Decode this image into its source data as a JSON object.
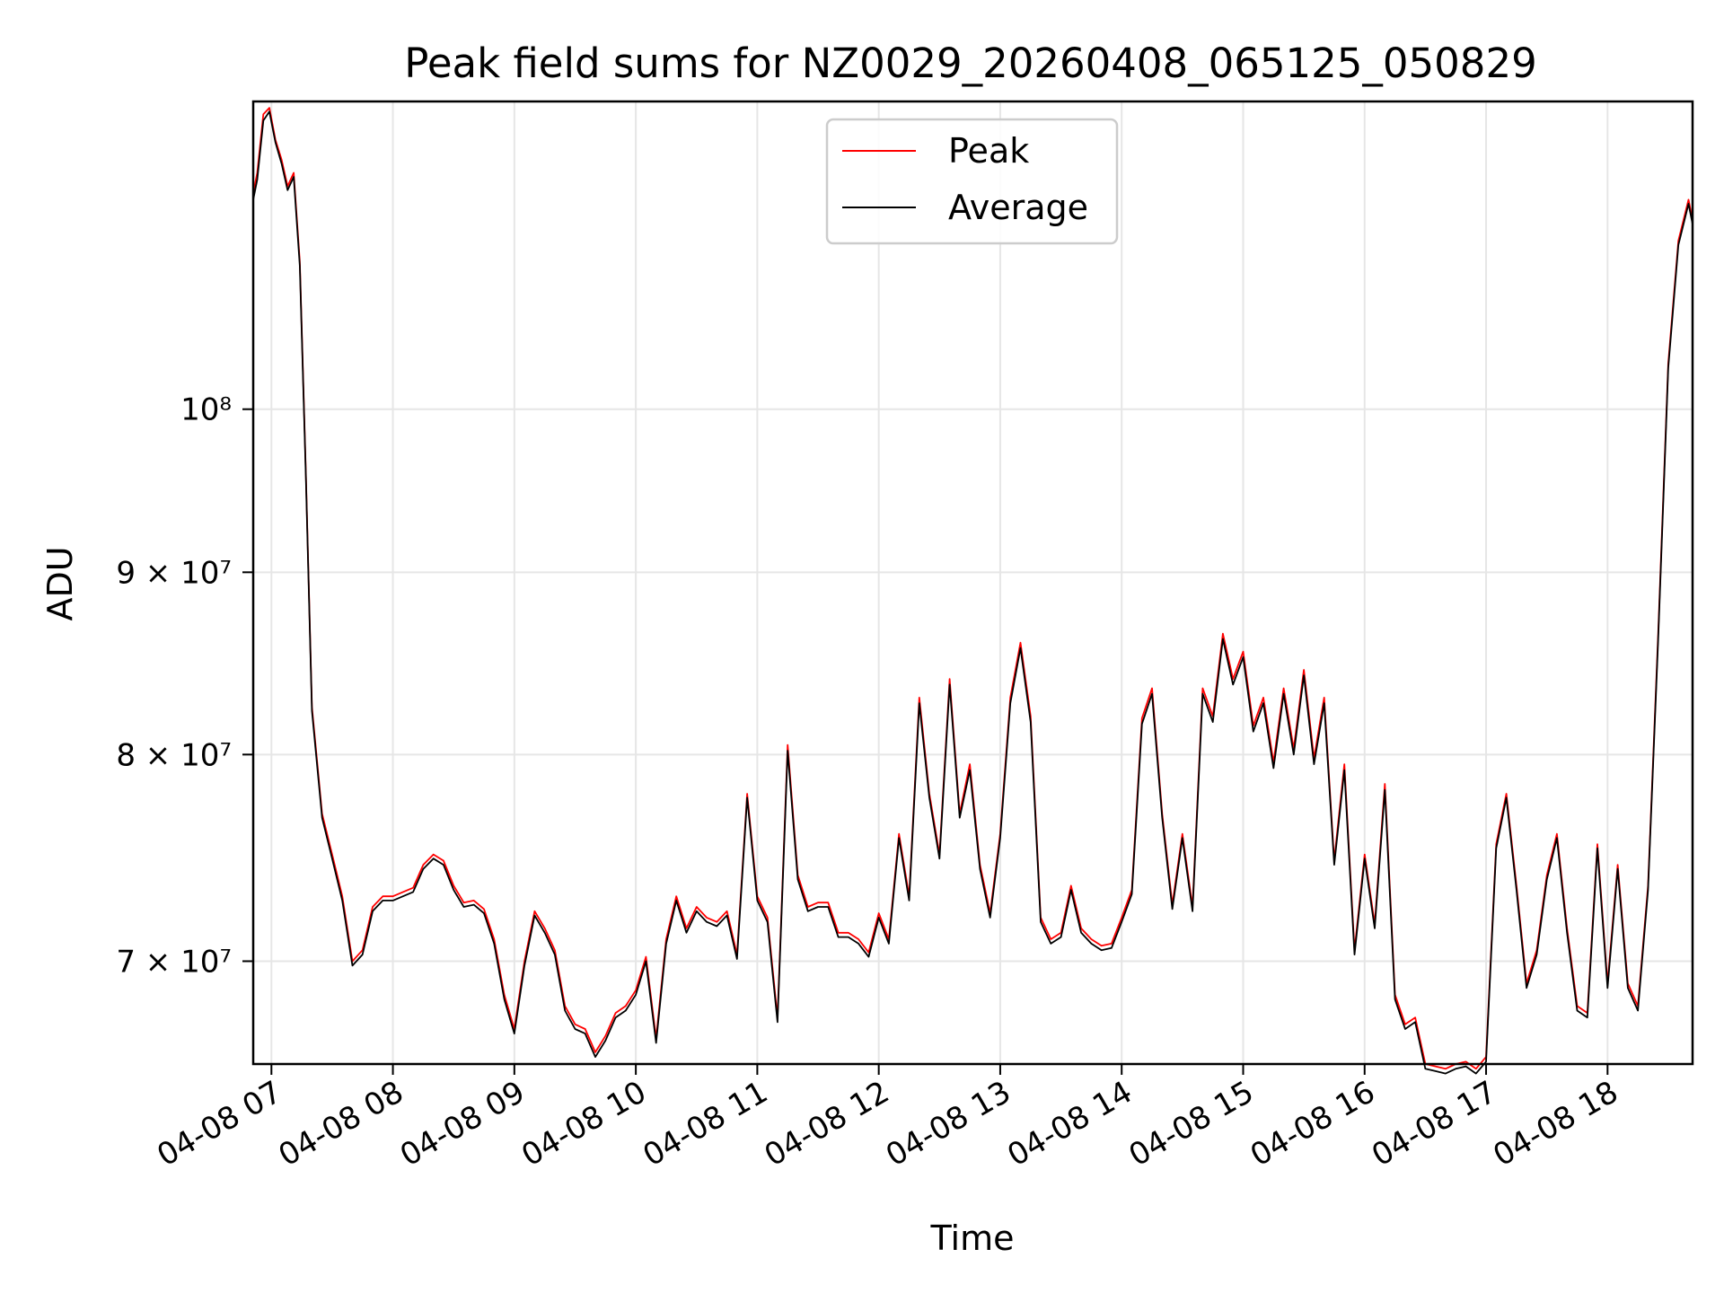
{
  "chart_data": {
    "type": "line",
    "title": "Peak field sums for NZ0029_20260408_065125_050829",
    "xlabel": "Time",
    "ylabel": "ADU",
    "yscale": "log",
    "grid": true,
    "legend_position": "top-center",
    "xlim": [
      "04-08 06:51",
      "04-08 18:42"
    ],
    "ylim": [
      65500000,
      122000000
    ],
    "x_ticks": [
      "04-08 07",
      "04-08 08",
      "04-08 09",
      "04-08 10",
      "04-08 11",
      "04-08 12",
      "04-08 13",
      "04-08 14",
      "04-08 15",
      "04-08 16",
      "04-08 17",
      "04-08 18"
    ],
    "y_ticks": [
      {
        "value": 70000000,
        "label": "7 × 10⁷"
      },
      {
        "value": 80000000,
        "label": "8 × 10⁷"
      },
      {
        "value": 90000000,
        "label": "9 × 10⁷"
      },
      {
        "value": 100000000,
        "label": "10⁸"
      }
    ],
    "x": [
      "06:51",
      "06:53",
      "06:56",
      "06:59",
      "07:02",
      "07:05",
      "07:08",
      "07:11",
      "07:14",
      "07:17",
      "07:20",
      "07:25",
      "07:30",
      "07:35",
      "07:40",
      "07:45",
      "07:50",
      "07:55",
      "08:00",
      "08:05",
      "08:10",
      "08:15",
      "08:20",
      "08:25",
      "08:30",
      "08:35",
      "08:40",
      "08:45",
      "08:50",
      "08:55",
      "09:00",
      "09:05",
      "09:10",
      "09:15",
      "09:20",
      "09:25",
      "09:30",
      "09:35",
      "09:40",
      "09:45",
      "09:50",
      "09:55",
      "10:00",
      "10:05",
      "10:10",
      "10:15",
      "10:20",
      "10:25",
      "10:30",
      "10:35",
      "10:40",
      "10:45",
      "10:50",
      "10:55",
      "11:00",
      "11:05",
      "11:10",
      "11:15",
      "11:20",
      "11:25",
      "11:30",
      "11:35",
      "11:40",
      "11:45",
      "11:50",
      "11:55",
      "12:00",
      "12:05",
      "12:10",
      "12:15",
      "12:20",
      "12:25",
      "12:30",
      "12:35",
      "12:40",
      "12:45",
      "12:50",
      "12:55",
      "13:00",
      "13:05",
      "13:10",
      "13:15",
      "13:20",
      "13:25",
      "13:30",
      "13:35",
      "13:40",
      "13:45",
      "13:50",
      "13:55",
      "14:00",
      "14:05",
      "14:10",
      "14:15",
      "14:20",
      "14:25",
      "14:30",
      "14:35",
      "14:40",
      "14:45",
      "14:50",
      "14:55",
      "15:00",
      "15:05",
      "15:10",
      "15:15",
      "15:20",
      "15:25",
      "15:30",
      "15:35",
      "15:40",
      "15:45",
      "15:50",
      "15:55",
      "16:00",
      "16:05",
      "16:10",
      "16:15",
      "16:20",
      "16:25",
      "16:30",
      "16:35",
      "16:40",
      "16:45",
      "16:50",
      "16:55",
      "17:00",
      "17:05",
      "17:10",
      "17:15",
      "17:20",
      "17:25",
      "17:30",
      "17:35",
      "17:40",
      "17:45",
      "17:50",
      "17:55",
      "18:00",
      "18:05",
      "18:10",
      "18:15",
      "18:20",
      "18:25",
      "18:30",
      "18:35",
      "18:40",
      "18:42"
    ],
    "series": [
      {
        "name": "Peak",
        "color": "#ff0000",
        "values": [
          115000000,
          116500000,
          121000000,
          121500000,
          119000000,
          117500000,
          115500000,
          116500000,
          110000000,
          96000000,
          82500000,
          77000000,
          75000000,
          73000000,
          70000000,
          70500000,
          72500000,
          73000000,
          73000000,
          73200000,
          73400000,
          74500000,
          75000000,
          74700000,
          73500000,
          72700000,
          72800000,
          72400000,
          71000000,
          68500000,
          67000000,
          70000000,
          72300000,
          71500000,
          70500000,
          68000000,
          67200000,
          67000000,
          66000000,
          66700000,
          67700000,
          68000000,
          68700000,
          70200000,
          66600000,
          71000000,
          73000000,
          71500000,
          72500000,
          72000000,
          71800000,
          72300000,
          70300000,
          78000000,
          73000000,
          72000000,
          67500000,
          80500000,
          74000000,
          72500000,
          72700000,
          72700000,
          71300000,
          71300000,
          71000000,
          70400000,
          72200000,
          71000000,
          76000000,
          73000000,
          83000000,
          78000000,
          75000000,
          84000000,
          77000000,
          79500000,
          74500000,
          72200000,
          76000000,
          83000000,
          86000000,
          82000000,
          72000000,
          71000000,
          71300000,
          73500000,
          71500000,
          71000000,
          70700000,
          70800000,
          72000000,
          73300000,
          81900000,
          83500000,
          77000000,
          72600000,
          76000000,
          72500000,
          83500000,
          82000000,
          86500000,
          84000000,
          85500000,
          81500000,
          83000000,
          79600000,
          83500000,
          80300000,
          84500000,
          79800000,
          83000000,
          74700000,
          79500000,
          70500000,
          75000000,
          71700000,
          78500000,
          68500000,
          67200000,
          67500000,
          65500000,
          65400000,
          65300000,
          65500000,
          65600000,
          65300000,
          65800000,
          75500000,
          78000000,
          73500000,
          69000000,
          70500000,
          74000000,
          76000000,
          71500000,
          68000000,
          67700000,
          75500000,
          69000000,
          74500000,
          69000000,
          68000000,
          73500000,
          86500000,
          103000000,
          111500000,
          114500000,
          113000000
        ]
      },
      {
        "name": "Average",
        "color": "#000000",
        "values": [
          114500000,
          116000000,
          120500000,
          121200000,
          118800000,
          117200000,
          115200000,
          116200000,
          109700000,
          95800000,
          82300000,
          76800000,
          74800000,
          72800000,
          69800000,
          70300000,
          72300000,
          72800000,
          72800000,
          73000000,
          73200000,
          74300000,
          74800000,
          74500000,
          73300000,
          72500000,
          72600000,
          72200000,
          70800000,
          68300000,
          66800000,
          69800000,
          72100000,
          71300000,
          70300000,
          67800000,
          67000000,
          66800000,
          65800000,
          66500000,
          67500000,
          67800000,
          68500000,
          70000000,
          66400000,
          70800000,
          72800000,
          71300000,
          72300000,
          71800000,
          71600000,
          72100000,
          70100000,
          77800000,
          72800000,
          71800000,
          67300000,
          80200000,
          73800000,
          72300000,
          72500000,
          72500000,
          71100000,
          71100000,
          70800000,
          70200000,
          72000000,
          70800000,
          75800000,
          72800000,
          82700000,
          77800000,
          74800000,
          83700000,
          76800000,
          79200000,
          74300000,
          72000000,
          75800000,
          82700000,
          85700000,
          81700000,
          71800000,
          70800000,
          71100000,
          73300000,
          71300000,
          70800000,
          70500000,
          70600000,
          71800000,
          73100000,
          81600000,
          83200000,
          76800000,
          72400000,
          75800000,
          72300000,
          83200000,
          81700000,
          86200000,
          83700000,
          85200000,
          81200000,
          82700000,
          79300000,
          83200000,
          80000000,
          84200000,
          79500000,
          82700000,
          74500000,
          79200000,
          70300000,
          74800000,
          71500000,
          78200000,
          68300000,
          67000000,
          67300000,
          65300000,
          65200000,
          65100000,
          65300000,
          65400000,
          65100000,
          65600000,
          75300000,
          77800000,
          73300000,
          68800000,
          70300000,
          73800000,
          75800000,
          71300000,
          67800000,
          67500000,
          75300000,
          68800000,
          74300000,
          68800000,
          67800000,
          73300000,
          86200000,
          102700000,
          111200000,
          114200000,
          112700000
        ]
      }
    ]
  }
}
